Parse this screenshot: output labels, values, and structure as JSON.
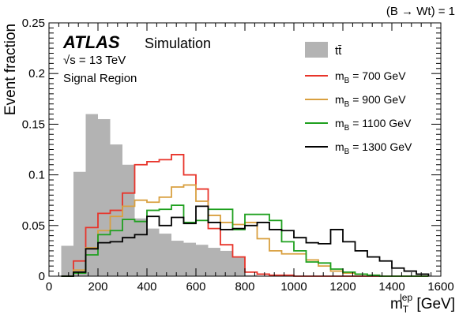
{
  "chart_data": {
    "type": "line",
    "top_label": "𝒝(B → Wt) = 1",
    "experiment": "ATLAS",
    "experiment_tag": "Simulation",
    "energy_label": "√s = 13 TeV",
    "region_label": "Signal Region",
    "xlabel": "m",
    "xlabel_sub": "T",
    "xlabel_sup": "lep",
    "xlabel_unit": " [GeV]",
    "ylabel": "Event fraction",
    "xlim": [
      0,
      1600
    ],
    "ylim": [
      0,
      0.25
    ],
    "xticks": [
      0,
      200,
      400,
      600,
      800,
      1000,
      1200,
      1400,
      1600
    ],
    "xtick_labels": [
      "0",
      "200",
      "400",
      "600",
      "800",
      "1000",
      "1200",
      "1400",
      "1600"
    ],
    "yticks": [
      0,
      0.05,
      0.1,
      0.15,
      0.2,
      0.25
    ],
    "ytick_labels": [
      "0",
      "0.05",
      "0.1",
      "0.15",
      "0.2",
      "0.25"
    ],
    "bin_edges": [
      50,
      100,
      150,
      200,
      250,
      300,
      350,
      400,
      450,
      500,
      550,
      600,
      650,
      700,
      750,
      800,
      850,
      900,
      950,
      1000,
      1050,
      1100,
      1150,
      1200,
      1250,
      1300,
      1350,
      1400,
      1450,
      1500,
      1550
    ],
    "background": {
      "name": "tt̄",
      "color": "#b3b3b3",
      "values": [
        0.03,
        0.103,
        0.16,
        0.155,
        0.13,
        0.11,
        0.057,
        0.047,
        0.042,
        0.035,
        0.033,
        0.031,
        0.028,
        0.025,
        0.019,
        0.001,
        0,
        0,
        0,
        0,
        0,
        0,
        0,
        0,
        0,
        0,
        0,
        0,
        0,
        0
      ]
    },
    "series": [
      {
        "name": "m_B = 700 GeV",
        "legend_main": "m",
        "legend_sub": "B",
        "legend_rest": " = 700 GeV",
        "color": "#e8342a",
        "values": [
          0,
          0.015,
          0.048,
          0.062,
          0.065,
          0.082,
          0.11,
          0.113,
          0.115,
          0.12,
          0.1,
          0.086,
          0.047,
          0.031,
          0.019,
          0.004,
          0.002,
          0.001,
          0.001,
          0,
          0,
          0,
          0,
          0,
          0,
          0,
          0,
          0,
          0,
          0
        ]
      },
      {
        "name": "m_B = 900 GeV",
        "legend_main": "m",
        "legend_sub": "B",
        "legend_rest": " = 900 GeV",
        "color": "#d9a040",
        "values": [
          0,
          0.006,
          0.028,
          0.045,
          0.059,
          0.069,
          0.075,
          0.073,
          0.078,
          0.088,
          0.09,
          0.074,
          0.06,
          0.053,
          0.051,
          0.053,
          0.037,
          0.025,
          0.022,
          0.022,
          0.016,
          0.01,
          0.005,
          0.003,
          0.002,
          0.001,
          0,
          0,
          0,
          0
        ]
      },
      {
        "name": "m_B = 1100 GeV",
        "legend_main": "m",
        "legend_sub": "B",
        "legend_rest": " = 1100 GeV",
        "color": "#1fa01f",
        "values": [
          0,
          0.003,
          0.021,
          0.041,
          0.045,
          0.056,
          0.054,
          0.065,
          0.066,
          0.07,
          0.053,
          0.055,
          0.066,
          0.066,
          0.046,
          0.061,
          0.061,
          0.055,
          0.034,
          0.025,
          0.014,
          0.013,
          0.007,
          0.004,
          0.002,
          0.001,
          0,
          0,
          0,
          0
        ]
      },
      {
        "name": "m_B = 1300 GeV",
        "legend_main": "m",
        "legend_sub": "B",
        "legend_rest": " = 1300 GeV",
        "color": "#000000",
        "values": [
          0,
          0.004,
          0.027,
          0.033,
          0.034,
          0.038,
          0.041,
          0.059,
          0.05,
          0.058,
          0.052,
          0.069,
          0.053,
          0.046,
          0.047,
          0.05,
          0.053,
          0.046,
          0.045,
          0.038,
          0.033,
          0.032,
          0.046,
          0.034,
          0.025,
          0.019,
          0.015,
          0.008,
          0.005,
          0.002
        ]
      }
    ]
  }
}
